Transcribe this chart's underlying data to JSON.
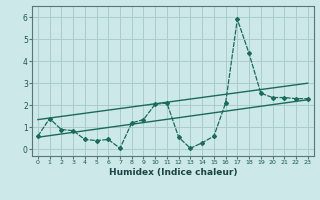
{
  "xlabel": "Humidex (Indice chaleur)",
  "background_color": "#cce8e8",
  "line_color": "#1a6b5a",
  "grid_color": "#aacccc",
  "xlim": [
    -0.5,
    23.5
  ],
  "ylim": [
    -0.3,
    6.5
  ],
  "xticks": [
    0,
    1,
    2,
    3,
    4,
    5,
    6,
    7,
    8,
    9,
    10,
    11,
    12,
    13,
    14,
    15,
    16,
    17,
    18,
    19,
    20,
    21,
    22,
    23
  ],
  "yticks": [
    0,
    1,
    2,
    3,
    4,
    5,
    6
  ],
  "line1_x": [
    0,
    1,
    2,
    3,
    4,
    5,
    6,
    7,
    8,
    9,
    10,
    11,
    12,
    13,
    14,
    15,
    16,
    17,
    18,
    19,
    20,
    21,
    22,
    23
  ],
  "line1_y": [
    0.6,
    1.4,
    0.9,
    0.85,
    0.45,
    0.4,
    0.45,
    0.05,
    1.2,
    1.35,
    2.05,
    2.1,
    0.55,
    0.05,
    0.3,
    0.6,
    2.1,
    5.9,
    4.35,
    2.55,
    2.35,
    2.35,
    2.3,
    2.3
  ],
  "line2_x": [
    0,
    23
  ],
  "line2_y": [
    1.35,
    3.0
  ],
  "line3_x": [
    0,
    23
  ],
  "line3_y": [
    0.55,
    2.25
  ]
}
